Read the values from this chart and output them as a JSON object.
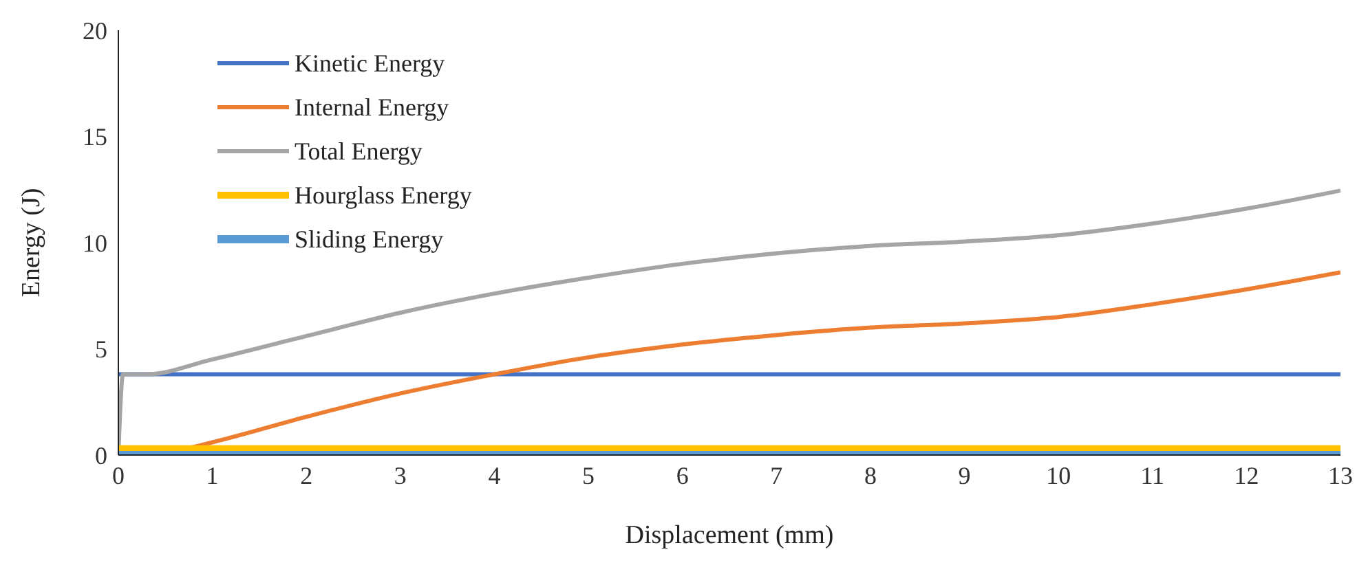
{
  "chart_data": {
    "type": "line",
    "xlabel": "Displacement (mm)",
    "ylabel": "Energy (J)",
    "xlim": [
      0,
      13
    ],
    "ylim": [
      0,
      20
    ],
    "xticks": [
      0,
      1,
      2,
      3,
      4,
      5,
      6,
      7,
      8,
      9,
      10,
      11,
      12,
      13
    ],
    "yticks": [
      0,
      5,
      10,
      15,
      20
    ],
    "grid": false,
    "legend": "top left",
    "marker": "none",
    "line_style": "solid",
    "series": [
      {
        "name": "Kinetic Energy",
        "color": "#4472c4",
        "x": [
          0,
          13
        ],
        "values": [
          3.8,
          3.8
        ]
      },
      {
        "name": "Internal Energy",
        "color": "#ed7d31",
        "x": [
          0,
          0.6,
          1,
          2,
          3,
          4,
          5,
          6,
          7,
          8,
          9,
          10,
          11,
          12,
          13
        ],
        "values": [
          0,
          0.2,
          0.6,
          1.8,
          2.9,
          3.8,
          4.6,
          5.2,
          5.65,
          6.0,
          6.2,
          6.5,
          7.1,
          7.8,
          8.6
        ]
      },
      {
        "name": "Total Energy",
        "color": "#a5a5a5",
        "x": [
          0,
          0.05,
          0.3,
          1,
          2,
          3,
          4,
          5,
          6,
          7,
          8,
          9,
          10,
          11,
          12,
          13
        ],
        "values": [
          0,
          3.8,
          3.8,
          4.5,
          5.6,
          6.7,
          7.6,
          8.35,
          9.0,
          9.5,
          9.85,
          10.05,
          10.35,
          10.9,
          11.6,
          12.45
        ]
      },
      {
        "name": "Hourglass Energy",
        "color": "#ffc000",
        "x": [
          0,
          13
        ],
        "values": [
          0.3,
          0.3
        ]
      },
      {
        "name": "Sliding Energy",
        "color": "#5b9bd5",
        "x": [
          0,
          13
        ],
        "values": [
          0,
          0
        ]
      }
    ]
  }
}
